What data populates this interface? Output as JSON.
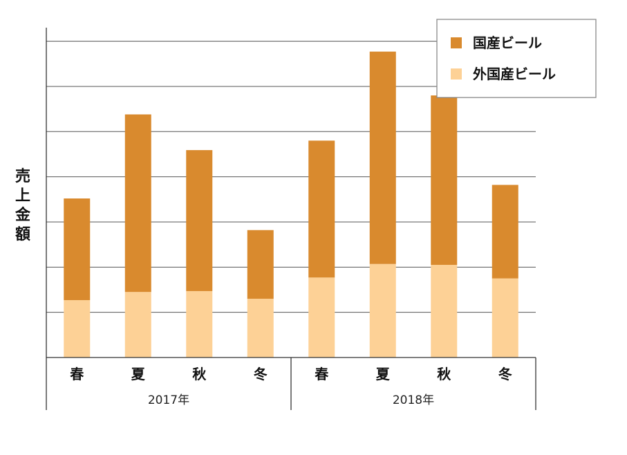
{
  "chart_data": {
    "type": "bar",
    "stacked": true,
    "title": "",
    "xlabel": "",
    "ylabel": "売上金額",
    "categories": [
      "春",
      "夏",
      "秋",
      "冬",
      "春",
      "夏",
      "秋",
      "冬"
    ],
    "groups": [
      {
        "label": "2017年",
        "span": 4
      },
      {
        "label": "2018年",
        "span": 4
      }
    ],
    "series": [
      {
        "name": "外国産ビール",
        "color": "#fdd196",
        "values": [
          1.27,
          1.45,
          1.47,
          1.3,
          1.77,
          2.07,
          2.05,
          1.75
        ]
      },
      {
        "name": "国産ビール",
        "color": "#d98a2e",
        "values": [
          2.25,
          3.93,
          3.12,
          1.52,
          3.03,
          4.7,
          3.75,
          2.07
        ]
      }
    ],
    "ylim": [
      0,
      7.3
    ],
    "gridlines": [
      1,
      2,
      3,
      4,
      5,
      6,
      7
    ],
    "y_tick_labels_shown": false,
    "legend_position": "top-right",
    "grid": true
  }
}
